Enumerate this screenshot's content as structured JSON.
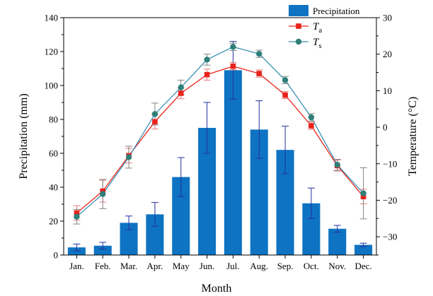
{
  "chart_data": {
    "type": "bar",
    "categories": [
      "Jan.",
      "Feb.",
      "Mar.",
      "Apr.",
      "May",
      "Jun.",
      "Jul.",
      "Aug.",
      "Sep.",
      "Oct.",
      "Nov.",
      "Dec."
    ],
    "xlabel": "Month",
    "ylabel_left": "Precipitation (mm)",
    "ylabel_right": "Temperature (°C)",
    "ylim_left": [
      0,
      140
    ],
    "ylim_right": [
      -35,
      30
    ],
    "yticks_left": [
      "0",
      "20",
      "40",
      "60",
      "80",
      "100",
      "120",
      "140"
    ],
    "yticks_right": [
      "−30",
      "−20",
      "−10",
      "0",
      "10",
      "20",
      "30"
    ],
    "grid": false,
    "legend_position": "top-right",
    "series": [
      {
        "name": "Precipitation",
        "kind": "bar",
        "axis": "left",
        "color": "#0e73c2",
        "values": [
          4.5,
          5.5,
          19,
          24,
          46,
          75,
          109,
          74,
          62,
          30.5,
          15.5,
          6
        ],
        "error": [
          2,
          2,
          4,
          7,
          11.5,
          15,
          17,
          17,
          14,
          9,
          2,
          1
        ]
      },
      {
        "name": "T",
        "subscript": "a",
        "kind": "line",
        "axis": "right",
        "color": "#e8231a",
        "values": [
          -23.5,
          -17.5,
          -7.8,
          1.5,
          9.3,
          14.4,
          16.7,
          14.7,
          8.8,
          0.4,
          -10.5,
          -19.0
        ],
        "error": [
          2,
          3,
          2,
          2,
          1.5,
          1.5,
          1,
          1,
          1,
          1,
          1.5,
          2
        ]
      },
      {
        "name": "T",
        "subscript": "s",
        "kind": "line",
        "axis": "right",
        "color": "#3a8fb5",
        "marker_color": "#2f7f78",
        "values": [
          -24.5,
          -18.3,
          -8.2,
          3.6,
          10.9,
          18.5,
          22.0,
          20.1,
          12.9,
          2.7,
          -10.3,
          -18.1
        ],
        "error": [
          2,
          4,
          3,
          3,
          2,
          1.5,
          1,
          1,
          1,
          1,
          1.5,
          7
        ]
      }
    ]
  }
}
